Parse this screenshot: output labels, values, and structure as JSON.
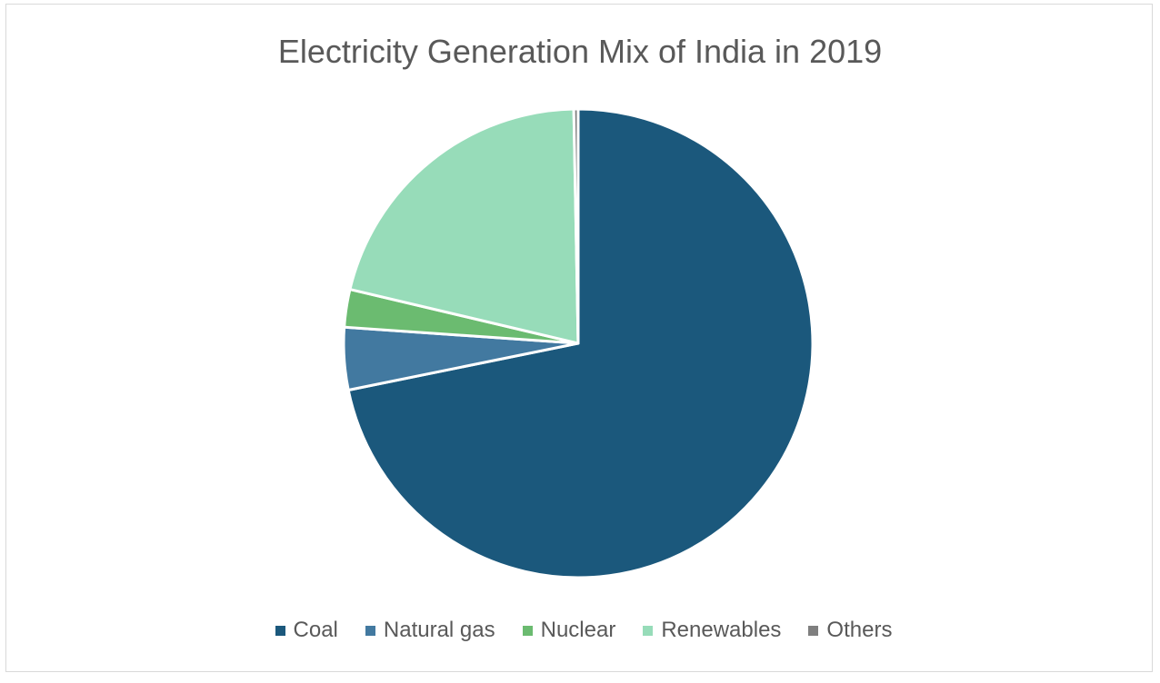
{
  "chart_data": {
    "type": "pie",
    "title": "Electricity Generation Mix of India in 2019",
    "categories": [
      "Coal",
      "Natural gas",
      "Nuclear",
      "Renewables",
      "Others"
    ],
    "values": [
      71.8,
      4.3,
      2.6,
      21.0,
      0.3
    ],
    "unit": "%",
    "colors": [
      "#1b587c",
      "#4279a0",
      "#6bbb70",
      "#97dcb9",
      "#7f7f7f"
    ],
    "start_angle": "12 o'clock",
    "direction": "clockwise",
    "legend_position": "bottom"
  }
}
